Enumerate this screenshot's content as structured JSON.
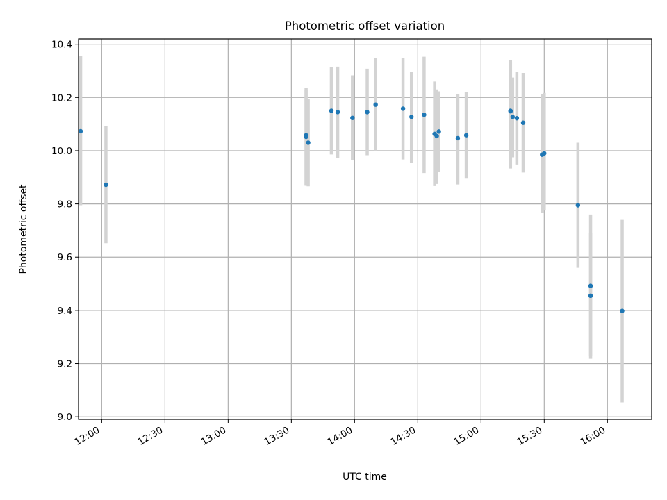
{
  "chart_data": {
    "type": "scatter",
    "title": "Photometric offset variation",
    "xlabel": "UTC time",
    "ylabel": "Photometric offset",
    "x_tick_labels": [
      "12:00",
      "12:30",
      "13:00",
      "13:30",
      "14:00",
      "14:30",
      "15:00",
      "15:30",
      "16:00"
    ],
    "y_tick_labels": [
      "9.0",
      "9.2",
      "9.4",
      "9.6",
      "9.8",
      "10.0",
      "10.2",
      "10.4"
    ],
    "x_ticks": [
      "12:00",
      "12:30",
      "13:00",
      "13:30",
      "14:00",
      "14:30",
      "15:00",
      "15:30",
      "16:00"
    ],
    "y_ticks": [
      9.0,
      9.2,
      9.4,
      9.6,
      9.8,
      10.0,
      10.2,
      10.4
    ],
    "xlim": [
      "11:49",
      "16:21"
    ],
    "ylim": [
      8.99,
      10.42
    ],
    "grid": true,
    "error_bar_color": "#d3d3d3",
    "point_color": "#1f77b4",
    "points": [
      {
        "x": "11:50",
        "y": 10.073,
        "lo": 9.795,
        "hi": 10.355
      },
      {
        "x": "12:02",
        "y": 9.872,
        "lo": 9.652,
        "hi": 10.092
      },
      {
        "x": "13:37",
        "y": 10.058,
        "lo": 9.868,
        "hi": 10.235
      },
      {
        "x": "13:37",
        "y": 10.052,
        "lo": 9.87,
        "hi": 10.227
      },
      {
        "x": "13:38",
        "y": 10.03,
        "lo": 9.866,
        "hi": 10.195
      },
      {
        "x": "13:49",
        "y": 10.15,
        "lo": 9.986,
        "hi": 10.313
      },
      {
        "x": "13:52",
        "y": 10.145,
        "lo": 9.972,
        "hi": 10.316
      },
      {
        "x": "13:59",
        "y": 10.123,
        "lo": 9.964,
        "hi": 10.283
      },
      {
        "x": "14:06",
        "y": 10.145,
        "lo": 9.983,
        "hi": 10.308
      },
      {
        "x": "14:10",
        "y": 10.173,
        "lo": 9.999,
        "hi": 10.348
      },
      {
        "x": "14:23",
        "y": 10.158,
        "lo": 9.967,
        "hi": 10.348
      },
      {
        "x": "14:27",
        "y": 10.127,
        "lo": 9.955,
        "hi": 10.296
      },
      {
        "x": "14:33",
        "y": 10.135,
        "lo": 9.916,
        "hi": 10.353
      },
      {
        "x": "14:38",
        "y": 10.063,
        "lo": 9.867,
        "hi": 10.26
      },
      {
        "x": "14:39",
        "y": 10.055,
        "lo": 9.875,
        "hi": 10.23
      },
      {
        "x": "14:40",
        "y": 10.072,
        "lo": 9.921,
        "hi": 10.223
      },
      {
        "x": "14:49",
        "y": 10.047,
        "lo": 9.873,
        "hi": 10.214
      },
      {
        "x": "14:53",
        "y": 10.058,
        "lo": 9.895,
        "hi": 10.221
      },
      {
        "x": "15:14",
        "y": 10.148,
        "lo": 9.933,
        "hi": 10.34
      },
      {
        "x": "15:14",
        "y": 10.15,
        "lo": 9.965,
        "hi": 10.335
      },
      {
        "x": "15:15",
        "y": 10.127,
        "lo": 9.975,
        "hi": 10.275
      },
      {
        "x": "15:17",
        "y": 10.122,
        "lo": 9.948,
        "hi": 10.296
      },
      {
        "x": "15:20",
        "y": 10.105,
        "lo": 9.918,
        "hi": 10.292
      },
      {
        "x": "15:29",
        "y": 9.985,
        "lo": 9.767,
        "hi": 10.212
      },
      {
        "x": "15:30",
        "y": 9.99,
        "lo": 9.775,
        "hi": 10.217
      },
      {
        "x": "15:46",
        "y": 9.795,
        "lo": 9.56,
        "hi": 10.03
      },
      {
        "x": "15:52",
        "y": 9.492,
        "lo": 9.227,
        "hi": 9.76
      },
      {
        "x": "15:52",
        "y": 9.455,
        "lo": 9.218,
        "hi": 9.692
      },
      {
        "x": "16:07",
        "y": 9.398,
        "lo": 9.054,
        "hi": 9.74
      }
    ]
  }
}
